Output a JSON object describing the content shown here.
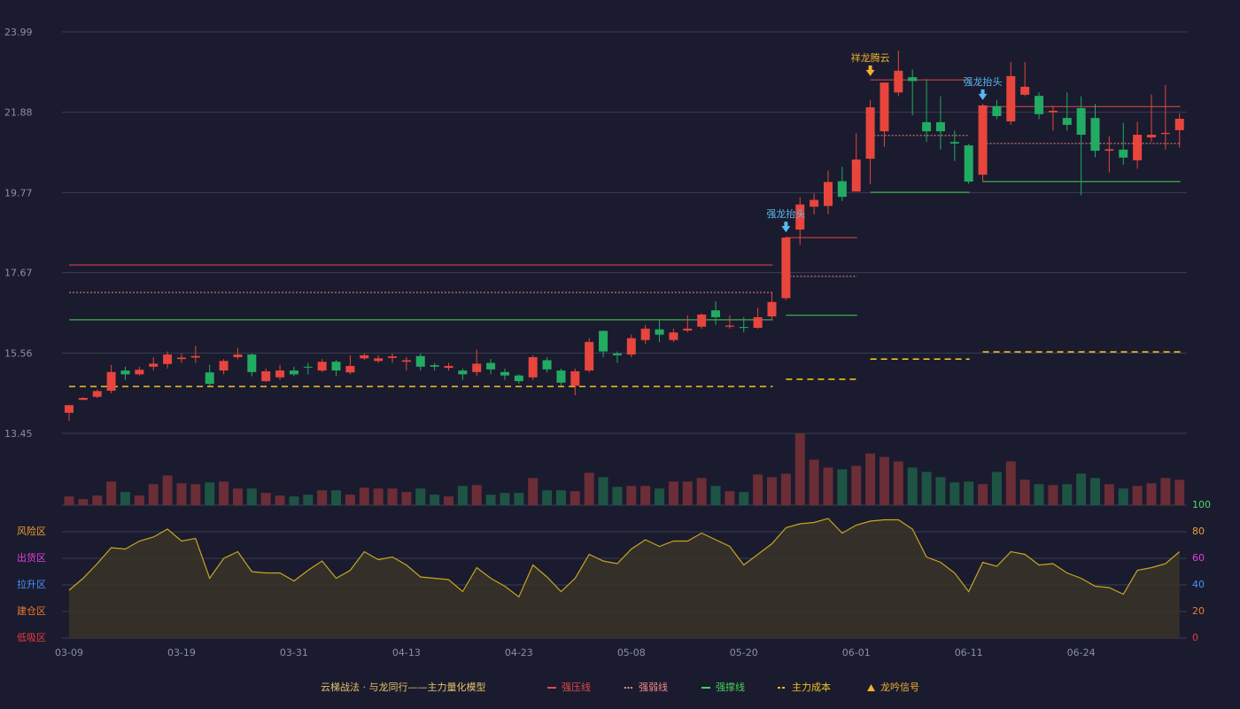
{
  "chart_data": {
    "type": "candlestick",
    "categories": [
      "03-09",
      null,
      null,
      null,
      null,
      null,
      null,
      null,
      "03-19",
      null,
      null,
      null,
      null,
      null,
      null,
      null,
      "03-31",
      null,
      null,
      null,
      null,
      null,
      null,
      null,
      "04-13",
      null,
      null,
      null,
      null,
      null,
      null,
      null,
      "04-23",
      null,
      null,
      null,
      null,
      null,
      null,
      null,
      "05-08",
      null,
      null,
      null,
      null,
      null,
      null,
      null,
      "05-20",
      null,
      null,
      null,
      null,
      null,
      null,
      null,
      "06-01",
      null,
      null,
      null,
      null,
      null,
      null,
      null,
      "06-11",
      null,
      null,
      null,
      null,
      null,
      null,
      null,
      "06-24",
      null,
      null,
      null,
      null,
      null,
      null,
      null
    ],
    "open": [
      13.99,
      14.33,
      14.41,
      14.57,
      15.1,
      15.0,
      15.2,
      15.27,
      15.4,
      15.44,
      15.05,
      15.1,
      15.45,
      15.52,
      14.82,
      14.92,
      15.1,
      15.2,
      15.1,
      15.33,
      15.05,
      15.42,
      15.35,
      15.43,
      15.33,
      15.48,
      15.24,
      15.17,
      15.1,
      15.06,
      15.3,
      15.06,
      14.97,
      14.92,
      15.37,
      15.1,
      14.7,
      15.1,
      16.14,
      15.55,
      15.52,
      15.9,
      16.18,
      15.9,
      16.15,
      16.25,
      16.68,
      16.25,
      16.24,
      16.22,
      16.52,
      17.0,
      18.8,
      19.4,
      19.42,
      20.07,
      19.8,
      20.66,
      21.38,
      22.4,
      22.8,
      21.62,
      21.62,
      21.1,
      21.01,
      20.24,
      22.04,
      21.64,
      22.34,
      22.31,
      21.88,
      21.73,
      21.99,
      21.73,
      20.87,
      20.9,
      20.62,
      21.22,
      21.31,
      21.41
    ],
    "high": [
      14.2,
      14.4,
      14.6,
      15.25,
      15.2,
      15.2,
      15.45,
      15.6,
      15.55,
      15.75,
      15.25,
      15.4,
      15.7,
      15.55,
      15.15,
      15.25,
      15.2,
      15.3,
      15.4,
      15.38,
      15.5,
      15.55,
      15.5,
      15.55,
      15.45,
      15.55,
      15.3,
      15.3,
      15.15,
      15.65,
      15.4,
      15.15,
      15.0,
      15.5,
      15.45,
      15.15,
      15.15,
      15.95,
      16.15,
      15.6,
      16.05,
      16.3,
      16.45,
      16.2,
      16.55,
      16.6,
      16.92,
      16.55,
      16.5,
      16.75,
      17.15,
      18.62,
      19.65,
      19.75,
      20.35,
      20.45,
      21.33,
      22.2,
      22.66,
      23.5,
      23.0,
      22.75,
      22.3,
      21.4,
      21.05,
      22.1,
      22.2,
      23.2,
      23.2,
      22.4,
      22.05,
      22.4,
      22.3,
      22.1,
      21.25,
      21.6,
      21.63,
      22.35,
      22.6,
      21.85
    ],
    "low": [
      13.78,
      14.32,
      14.38,
      14.5,
      14.85,
      14.97,
      15.1,
      15.15,
      15.3,
      15.3,
      14.7,
      15.0,
      15.4,
      14.95,
      14.8,
      14.85,
      14.95,
      15.0,
      15.05,
      14.95,
      15.0,
      15.38,
      15.3,
      15.3,
      15.1,
      15.1,
      15.1,
      15.1,
      14.85,
      14.95,
      15.0,
      14.85,
      14.75,
      14.85,
      15.05,
      14.7,
      14.45,
      15.05,
      15.45,
      15.3,
      15.45,
      15.8,
      15.85,
      15.85,
      16.1,
      16.2,
      16.3,
      16.2,
      16.1,
      16.2,
      16.45,
      16.95,
      18.4,
      19.2,
      19.2,
      19.55,
      19.8,
      20.0,
      20.97,
      22.3,
      21.8,
      21.1,
      20.9,
      20.6,
      20.0,
      20.05,
      21.7,
      21.55,
      22.3,
      21.7,
      21.4,
      21.4,
      19.7,
      20.7,
      20.3,
      20.5,
      20.4,
      21.1,
      20.9,
      20.95
    ],
    "close": [
      14.19,
      14.38,
      14.56,
      15.06,
      15.0,
      15.12,
      15.28,
      15.52,
      15.44,
      15.48,
      14.75,
      15.35,
      15.52,
      15.06,
      15.08,
      15.1,
      15.0,
      15.18,
      15.33,
      15.1,
      15.22,
      15.5,
      15.42,
      15.47,
      15.37,
      15.2,
      15.2,
      15.22,
      15.0,
      15.28,
      15.13,
      14.97,
      14.82,
      15.45,
      15.13,
      14.78,
      15.08,
      15.85,
      15.6,
      15.5,
      15.95,
      16.2,
      16.04,
      16.1,
      16.2,
      16.57,
      16.5,
      16.28,
      16.22,
      16.5,
      16.9,
      18.59,
      19.46,
      19.58,
      20.05,
      19.66,
      20.64,
      22.01,
      22.66,
      22.97,
      22.7,
      21.38,
      21.38,
      21.06,
      20.06,
      22.06,
      21.78,
      22.83,
      22.55,
      21.83,
      21.92,
      21.55,
      21.29,
      20.87,
      20.91,
      20.69,
      21.29,
      21.29,
      21.34,
      21.71
    ],
    "up_color": "#e8453c",
    "down_color": "#22ab62",
    "ylim": [
      13.45,
      23.99
    ],
    "yticks": [
      13.45,
      15.56,
      17.67,
      19.77,
      21.88,
      23.99
    ],
    "grid": true,
    "volume": {
      "values": [
        10,
        7,
        11,
        27,
        15,
        11,
        24,
        34,
        25,
        24,
        26,
        27,
        19,
        19,
        14,
        11,
        10,
        12,
        17,
        17,
        12,
        20,
        19,
        19,
        15,
        19,
        12,
        10,
        22,
        23,
        12,
        14,
        14,
        31,
        17,
        17,
        16,
        37,
        32,
        21,
        22,
        22,
        19,
        27,
        27,
        31,
        22,
        16,
        15,
        35,
        32,
        36,
        82,
        52,
        43,
        41,
        45,
        59,
        55,
        50,
        43,
        38,
        32,
        26,
        27,
        24,
        38,
        50,
        29,
        24,
        23,
        24,
        36,
        31,
        24,
        19,
        22,
        25,
        31,
        29
      ],
      "up_color": "#6b2d36",
      "down_color": "#1e5444",
      "ylim": [
        0,
        82
      ]
    },
    "levels": [
      {
        "name": "强压线",
        "color": "#e04848",
        "style": "solid",
        "segments": [
          {
            "from": 0,
            "to": 50,
            "value": 17.87
          },
          {
            "from": 51,
            "to": 56,
            "value": 18.59
          },
          {
            "from": 57,
            "to": 64,
            "value": 22.73
          },
          {
            "from": 65,
            "to": 79,
            "value": 22.03
          }
        ]
      },
      {
        "name": "强弱线",
        "color": "#f08a8a",
        "style": "dotted",
        "segments": [
          {
            "from": 0,
            "to": 50,
            "value": 17.15
          },
          {
            "from": 51,
            "to": 56,
            "value": 17.57
          },
          {
            "from": 57,
            "to": 64,
            "value": 21.27
          },
          {
            "from": 65,
            "to": 79,
            "value": 21.06
          }
        ]
      },
      {
        "name": "强撑线",
        "color": "#44d455",
        "style": "solid",
        "segments": [
          {
            "from": 0,
            "to": 50,
            "value": 16.43
          },
          {
            "from": 51,
            "to": 56,
            "value": 16.55
          },
          {
            "from": 57,
            "to": 64,
            "value": 19.78
          },
          {
            "from": 65,
            "to": 79,
            "value": 20.06
          }
        ]
      },
      {
        "name": "主力成本",
        "color": "#f0c020",
        "style": "dashed",
        "segments": [
          {
            "from": 0,
            "to": 50,
            "value": 14.68
          },
          {
            "from": 51,
            "to": 56,
            "value": 14.87
          },
          {
            "from": 57,
            "to": 64,
            "value": 15.4
          },
          {
            "from": 65,
            "to": 79,
            "value": 15.59
          }
        ]
      }
    ],
    "signals": [
      {
        "text": "强龙抬头",
        "index": 51,
        "value": 18.73,
        "color": "#5ab8f0"
      },
      {
        "text": "祥龙腾云",
        "index": 57,
        "value": 22.83,
        "color": "#f0b030"
      },
      {
        "text": "强龙抬头",
        "index": 65,
        "value": 22.2,
        "color": "#5ab8f0"
      }
    ],
    "oscillator": {
      "values": [
        36,
        45,
        56,
        68,
        67,
        73,
        76,
        82,
        73,
        75,
        45,
        60,
        65,
        50,
        49,
        49,
        43,
        51,
        58,
        45,
        51,
        65,
        59,
        61,
        55,
        46,
        45,
        44,
        35,
        53,
        45,
        39,
        31,
        55,
        46,
        35,
        45,
        63,
        58,
        56,
        67,
        74,
        69,
        73,
        73,
        79,
        74,
        69,
        55,
        63,
        71,
        83,
        86,
        87,
        90,
        79,
        85,
        88,
        89,
        89,
        82,
        61,
        57,
        49,
        35,
        57,
        54,
        65,
        63,
        55,
        56,
        49,
        45,
        39,
        38,
        33,
        51,
        53,
        56,
        65
      ],
      "color": "#c9a520",
      "fill": "#3a3428",
      "ylim": [
        0,
        100
      ],
      "yticks": [
        0,
        20,
        40,
        60,
        80,
        100
      ],
      "ytick_colors": [
        "#f03a3a",
        "#f07a30",
        "#4a90ff",
        "#e040e0",
        "#f0a030",
        "#4cd964"
      ],
      "zones": [
        {
          "label": "风险区",
          "value": 80,
          "color": "#f0a030"
        },
        {
          "label": "出货区",
          "value": 60,
          "color": "#e040e0"
        },
        {
          "label": "拉升区",
          "value": 40,
          "color": "#4a90ff"
        },
        {
          "label": "建仓区",
          "value": 20,
          "color": "#f07a30"
        },
        {
          "label": "低吸区",
          "value": 0,
          "color": "#f03a3a"
        }
      ]
    },
    "legend_title": "云梯战法 · 与龙同行——主力量化模型",
    "legend_title_color": "#e3c26a",
    "signal_legend": {
      "name": "龙吟信号",
      "color": "#f0b030"
    }
  }
}
